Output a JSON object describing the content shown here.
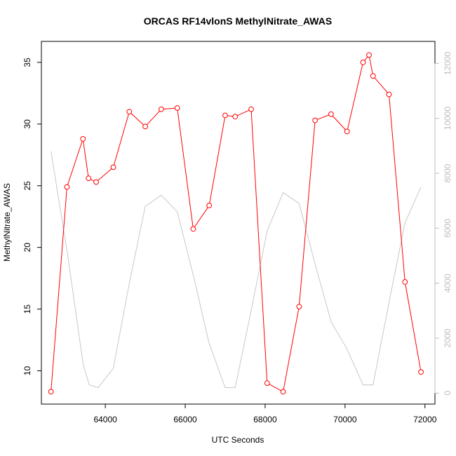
{
  "chart_data": {
    "type": "line",
    "title": "ORCAS RF14vlonS MethylNitrate_AWAS",
    "xlabel": "UTC Seconds",
    "ylabel": "MethylNitrate_AWAS",
    "xlim": [
      62400,
      72250
    ],
    "ylim": [
      7.3,
      36.7
    ],
    "y2lim": [
      -400,
      12800
    ],
    "x_ticks": [
      64000,
      66000,
      68000,
      70000,
      72000
    ],
    "y_ticks": [
      10,
      15,
      20,
      25,
      30,
      35
    ],
    "y2_ticks": [
      0,
      2000,
      4000,
      6000,
      8000,
      10000,
      12000
    ],
    "grid": false,
    "series": [
      {
        "axis": "left",
        "color": "#ff0000",
        "style": "line-with-open-circles",
        "x": [
          62640,
          63040,
          63440,
          63580,
          63770,
          64200,
          64600,
          65000,
          65400,
          65800,
          66200,
          66600,
          67000,
          67250,
          67650,
          68050,
          68450,
          68850,
          69250,
          69650,
          70050,
          70450,
          70600,
          70700,
          71100,
          71500,
          71900
        ],
        "y": [
          8.3,
          24.9,
          28.8,
          25.6,
          25.3,
          26.5,
          31.0,
          29.8,
          31.2,
          31.3,
          21.5,
          23.4,
          30.7,
          30.6,
          31.2,
          9.0,
          8.3,
          15.2,
          30.3,
          30.8,
          29.4,
          35.0,
          35.6,
          33.9,
          32.4,
          17.2,
          9.9
        ]
      },
      {
        "axis": "right",
        "color": "#c8c8c8",
        "style": "line",
        "x": [
          62640,
          63050,
          63450,
          63600,
          63820,
          64200,
          64600,
          65000,
          65400,
          65800,
          66200,
          66600,
          67000,
          67250,
          67650,
          68050,
          68450,
          68850,
          69250,
          69650,
          70050,
          70450,
          70700,
          71100,
          71500,
          71900
        ],
        "y": [
          8800,
          5100,
          1000,
          300,
          200,
          900,
          4000,
          6800,
          7200,
          6600,
          4300,
          1800,
          200,
          200,
          3000,
          5900,
          7300,
          6900,
          4700,
          2600,
          1600,
          300,
          300,
          3300,
          6200,
          7500
        ]
      }
    ]
  }
}
